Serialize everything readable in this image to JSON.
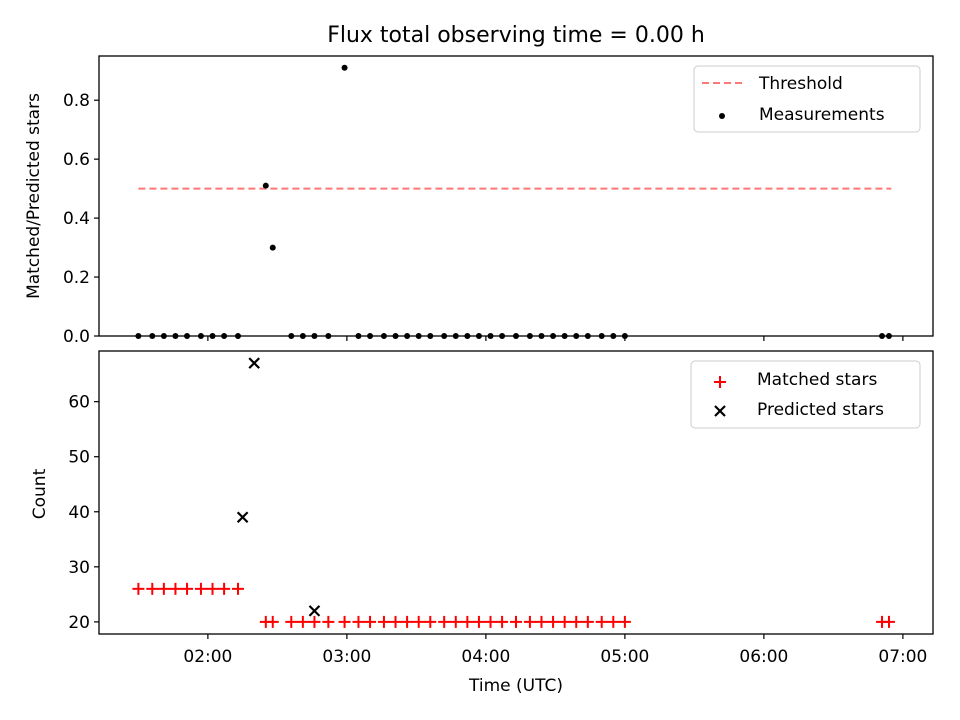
{
  "title": "Flux total observing time = 0.00 h",
  "chart_data": [
    {
      "type": "scatter",
      "ylabel": "Matched/Predicted stars",
      "xlabel": "",
      "xlim": [
        "01:13",
        "07:13"
      ],
      "ylim": [
        0,
        0.95
      ],
      "yticks": [
        0.0,
        0.2,
        0.4,
        0.6,
        0.8
      ],
      "ytick_labels": [
        "0.0",
        "0.2",
        "0.4",
        "0.6",
        "0.8"
      ],
      "grid": false,
      "legend_position": "upper right",
      "threshold": {
        "name": "Threshold",
        "value": 0.5,
        "x_start": "01:30",
        "x_end": "06:55",
        "color": "#ff7777"
      },
      "series": [
        {
          "name": "Measurements",
          "marker": "dot",
          "color": "#000000",
          "x": [
            "01:30",
            "01:36",
            "01:41",
            "01:46",
            "01:51",
            "01:57",
            "02:02",
            "02:07",
            "02:13",
            "02:25",
            "02:28",
            "02:36",
            "02:41",
            "02:46",
            "02:52",
            "02:59",
            "03:05",
            "03:10",
            "03:16",
            "03:21",
            "03:26",
            "03:31",
            "03:36",
            "03:42",
            "03:47",
            "03:52",
            "03:57",
            "04:02",
            "04:07",
            "04:13",
            "04:19",
            "04:24",
            "04:29",
            "04:34",
            "04:39",
            "04:44",
            "04:50",
            "04:55",
            "05:00",
            "06:51",
            "06:54"
          ],
          "y": [
            0,
            0,
            0,
            0,
            0,
            0,
            0,
            0,
            0,
            0.51,
            0.3,
            0,
            0,
            0,
            0,
            0.91,
            0,
            0,
            0,
            0,
            0,
            0,
            0,
            0,
            0,
            0,
            0,
            0,
            0,
            0,
            0,
            0,
            0,
            0,
            0,
            0,
            0,
            0,
            0,
            0,
            0
          ]
        }
      ]
    },
    {
      "type": "scatter",
      "ylabel": "Count",
      "xlabel": "Time (UTC)",
      "xlim": [
        "01:13",
        "07:13"
      ],
      "ylim": [
        17.8,
        69.2
      ],
      "yticks": [
        20,
        30,
        40,
        50,
        60
      ],
      "ytick_labels": [
        "20",
        "30",
        "40",
        "50",
        "60"
      ],
      "xtick_values": [
        "02:00",
        "03:00",
        "04:00",
        "05:00",
        "06:00",
        "07:00"
      ],
      "xtick_labels": [
        "02:00",
        "03:00",
        "04:00",
        "05:00",
        "06:00",
        "07:00"
      ],
      "grid": false,
      "legend_position": "upper right",
      "series": [
        {
          "name": "Matched stars",
          "marker": "plus",
          "color": "#ff0000",
          "x": [
            "01:30",
            "01:36",
            "01:41",
            "01:46",
            "01:51",
            "01:57",
            "02:02",
            "02:07",
            "02:13",
            "02:25",
            "02:28",
            "02:36",
            "02:41",
            "02:46",
            "02:52",
            "02:59",
            "03:05",
            "03:10",
            "03:16",
            "03:21",
            "03:26",
            "03:31",
            "03:36",
            "03:42",
            "03:47",
            "03:52",
            "03:57",
            "04:02",
            "04:07",
            "04:13",
            "04:19",
            "04:24",
            "04:29",
            "04:34",
            "04:39",
            "04:44",
            "04:50",
            "04:55",
            "05:00",
            "06:51",
            "06:54"
          ],
          "y": [
            26,
            26,
            26,
            26,
            26,
            26,
            26,
            26,
            26,
            20,
            20,
            20,
            20,
            20,
            20,
            20,
            20,
            20,
            20,
            20,
            20,
            20,
            20,
            20,
            20,
            20,
            20,
            20,
            20,
            20,
            20,
            20,
            20,
            20,
            20,
            20,
            20,
            20,
            20,
            20,
            20
          ]
        },
        {
          "name": "Predicted stars",
          "marker": "x",
          "color": "#000000",
          "x": [
            "02:15",
            "02:20",
            "02:46"
          ],
          "y": [
            39,
            67,
            22
          ]
        }
      ]
    }
  ]
}
